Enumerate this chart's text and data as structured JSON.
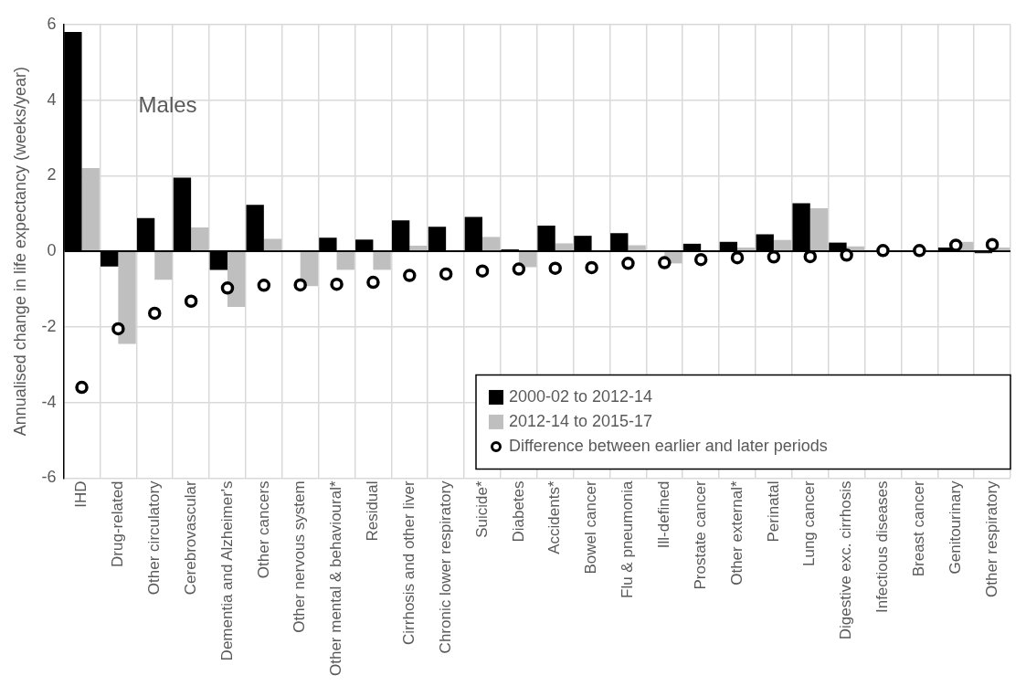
{
  "chart_data": {
    "type": "bar",
    "ylabel": "Annualised change in life expectancy (weeks/year)",
    "annotations": [
      "Males"
    ],
    "categories": [
      "IHD",
      "Drug-related",
      "Other circulatory",
      "Cerebrovascular",
      "Dementia and Alzheimer's",
      "Other cancers",
      "Other nervous system",
      "Other mental & behavioural*",
      "Residual",
      "Cirrhosis and other liver",
      "Chronic lower respiratory",
      "Suicide*",
      "Diabetes",
      "Accidents*",
      "Bowel cancer",
      "Flu & pneumonia",
      "Ill-defined",
      "Prostate cancer",
      "Other external*",
      "Perinatal",
      "Lung cancer",
      "Digestive exc. cirrhosis",
      "Infectious diseases",
      "Breast cancer",
      "Genitourinary",
      "Other respiratory"
    ],
    "series": [
      {
        "name": "2000-02 to 2012-14",
        "color": "#000000",
        "values": [
          5.8,
          -0.4,
          0.88,
          1.95,
          -0.49,
          1.23,
          0.02,
          0.36,
          0.31,
          0.82,
          0.65,
          0.91,
          0.05,
          0.68,
          0.41,
          0.48,
          0.02,
          0.2,
          0.25,
          0.45,
          1.27,
          0.23,
          null,
          0.02,
          0.1,
          -0.05
        ]
      },
      {
        "name": "2012-14 to 2015-17",
        "color": "#bfbfbf",
        "values": [
          2.2,
          -2.45,
          -0.75,
          0.63,
          -1.47,
          0.33,
          -0.92,
          -0.49,
          -0.49,
          0.15,
          null,
          0.38,
          -0.42,
          0.21,
          0,
          0.16,
          -0.32,
          0,
          0.1,
          0.3,
          1.14,
          0.13,
          null,
          null,
          0.25,
          0.1
        ]
      },
      {
        "name": "Difference between earlier and later periods",
        "type": "scatter",
        "color": "#000000",
        "marker": "circle",
        "values": [
          -3.6,
          -2.05,
          -1.64,
          -1.32,
          -0.97,
          -0.9,
          -0.89,
          -0.87,
          -0.82,
          -0.64,
          -0.6,
          -0.52,
          -0.47,
          -0.45,
          -0.43,
          -0.32,
          -0.3,
          -0.22,
          -0.17,
          -0.15,
          -0.14,
          -0.1,
          0.02,
          0.02,
          0.16,
          0.18
        ]
      }
    ],
    "ylim": [
      -6,
      6
    ],
    "yticks": [
      -6,
      -4,
      -2,
      0,
      2,
      4,
      6
    ],
    "grid": true,
    "legend": "bottom right"
  }
}
